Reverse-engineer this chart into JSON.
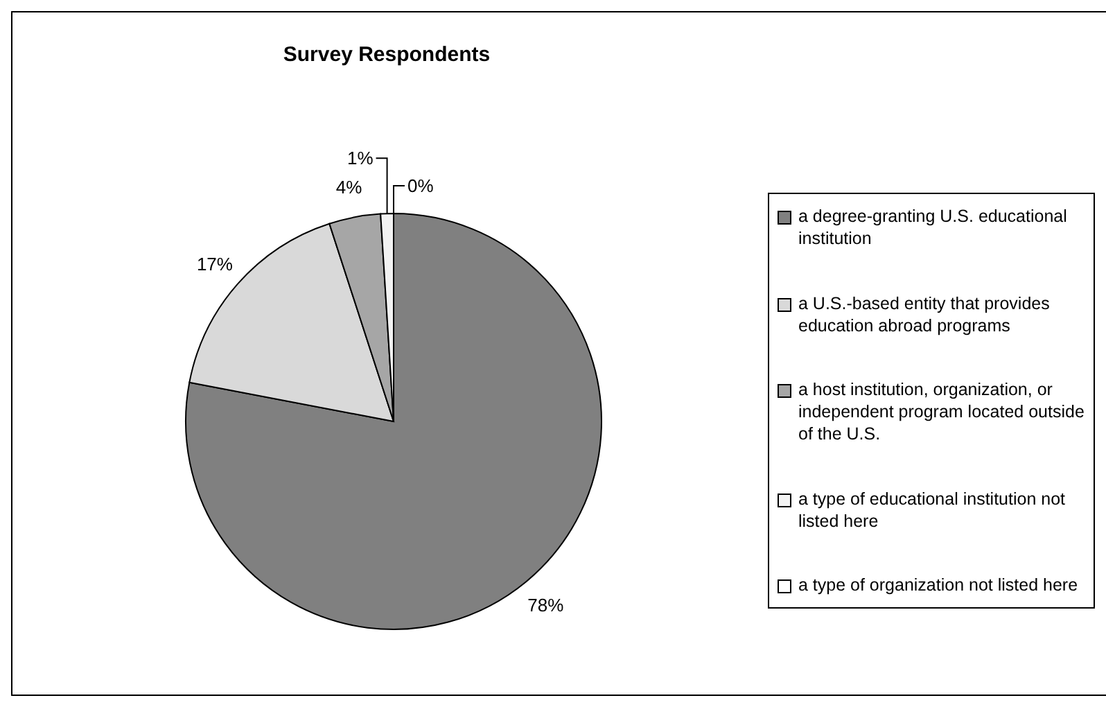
{
  "chart_data": {
    "type": "pie",
    "title": "Survey Respondents",
    "categories": [
      "a degree-granting U.S. educational institution",
      "a U.S.-based entity that provides education abroad programs",
      "a host institution, organization, or independent program located outside of the U.S.",
      "a type of educational institution not listed here",
      "a type of organization not listed here"
    ],
    "values": [
      78,
      17,
      4,
      1,
      0
    ],
    "value_labels": [
      "78%",
      "17%",
      "4%",
      "1%",
      "0%"
    ],
    "colors": [
      "#808080",
      "#d9d9d9",
      "#a6a6a6",
      "#f2f2f2",
      "#ffffff"
    ],
    "legend": "right"
  }
}
